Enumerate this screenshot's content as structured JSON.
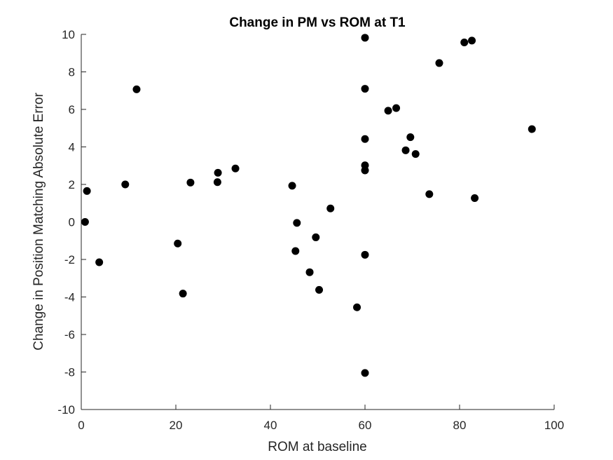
{
  "chart_data": {
    "type": "scatter",
    "title": "Change in PM vs ROM at T1",
    "xlabel": "ROM at baseline",
    "ylabel": "Change in Position Matching Absolute Error",
    "xlim": [
      0,
      100
    ],
    "ylim": [
      -10,
      10
    ],
    "x_ticks": [
      "0",
      "20",
      "40",
      "60",
      "80",
      "100"
    ],
    "y_ticks": [
      "-10",
      "-8",
      "-6",
      "-4",
      "-2",
      "0",
      "2",
      "4",
      "6",
      "8",
      "10"
    ],
    "grid": false,
    "marker_color": "#000000",
    "series": [
      {
        "points": [
          [
            0.8,
            0.0
          ],
          [
            1.2,
            1.65
          ],
          [
            3.8,
            -2.15
          ],
          [
            9.3,
            2.0
          ],
          [
            11.7,
            7.07
          ],
          [
            20.4,
            -1.15
          ],
          [
            21.5,
            -3.82
          ],
          [
            23.1,
            2.1
          ],
          [
            28.8,
            2.12
          ],
          [
            28.9,
            2.62
          ],
          [
            32.6,
            2.85
          ],
          [
            44.6,
            1.93
          ],
          [
            45.3,
            -1.55
          ],
          [
            45.6,
            -0.05
          ],
          [
            48.3,
            -2.68
          ],
          [
            49.6,
            -0.82
          ],
          [
            50.3,
            -3.62
          ],
          [
            52.7,
            0.72
          ],
          [
            58.3,
            -4.55
          ],
          [
            60.0,
            9.82
          ],
          [
            60.0,
            7.1
          ],
          [
            60.0,
            4.42
          ],
          [
            60.0,
            3.02
          ],
          [
            60.0,
            2.75
          ],
          [
            60.0,
            -1.75
          ],
          [
            60.0,
            -8.05
          ],
          [
            64.9,
            5.93
          ],
          [
            66.6,
            6.07
          ],
          [
            68.6,
            3.82
          ],
          [
            69.6,
            4.52
          ],
          [
            70.7,
            3.62
          ],
          [
            73.6,
            1.48
          ],
          [
            75.7,
            8.47
          ],
          [
            81.0,
            9.57
          ],
          [
            82.6,
            9.67
          ],
          [
            83.2,
            1.27
          ],
          [
            95.3,
            4.95
          ]
        ]
      }
    ]
  }
}
